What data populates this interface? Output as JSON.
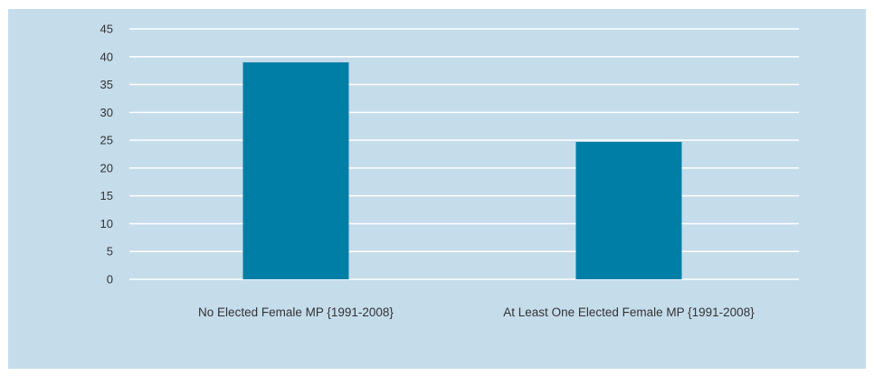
{
  "chart_data": {
    "type": "bar",
    "categories": [
      "No Elected Female MP {1991-2008}",
      "At Least One Elected Female MP {1991-2008}"
    ],
    "values": [
      39,
      24.7
    ],
    "title": "",
    "xlabel": "",
    "ylabel": "",
    "ylim": [
      0,
      45
    ],
    "yticks": [
      0,
      5,
      10,
      15,
      20,
      25,
      30,
      35,
      40,
      45
    ],
    "grid": true,
    "legend": "none",
    "colors": {
      "background": "#c5dceb",
      "bar": "#007ea6",
      "gridline": "#ffffff",
      "text": "#333333"
    }
  }
}
